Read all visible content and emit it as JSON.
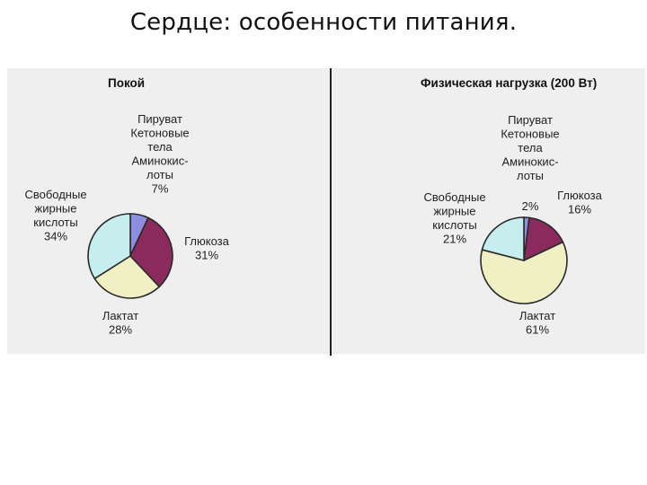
{
  "slide": {
    "title": "Сердце: особенности питания."
  },
  "chart_data": [
    {
      "type": "pie",
      "title": "Покой",
      "slices": [
        {
          "label": [
            "Пируват",
            "Кетоновые",
            "тела",
            "Аминокис-",
            "лоты"
          ],
          "value": 7,
          "value_label": "7%",
          "color": "#8e8ee0"
        },
        {
          "label": [
            "Глюкоза"
          ],
          "value": 31,
          "value_label": "31%",
          "color": "#8b2a5c"
        },
        {
          "label": [
            "Лактат"
          ],
          "value": 28,
          "value_label": "28%",
          "color": "#f1f0c4"
        },
        {
          "label": [
            "Свободные",
            "жирные",
            "кислоты"
          ],
          "value": 34,
          "value_label": "34%",
          "color": "#c6eeee"
        }
      ]
    },
    {
      "type": "pie",
      "title": "Физическая нагрузка (200 Вт)",
      "slices": [
        {
          "label": [
            "Пируват",
            "Кетоновые",
            "тела",
            "Аминокис-",
            "лоты"
          ],
          "value": 2,
          "value_label": "2%",
          "color": "#8e8ee0"
        },
        {
          "label": [
            "Глюкоза"
          ],
          "value": 16,
          "value_label": "16%",
          "color": "#8b2a5c"
        },
        {
          "label": [
            "Лактат"
          ],
          "value": 61,
          "value_label": "61%",
          "color": "#f1f0c4"
        },
        {
          "label": [
            "Свободные",
            "жирные",
            "кислоты"
          ],
          "value": 21,
          "value_label": "21%",
          "color": "#c6eeee"
        }
      ]
    }
  ]
}
